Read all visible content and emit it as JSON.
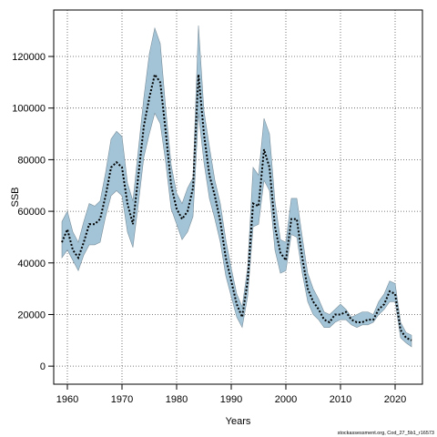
{
  "chart_data": {
    "type": "line",
    "title": "",
    "xlabel": "Years",
    "ylabel": "SSB",
    "xlim": [
      1957.5,
      2025.0
    ],
    "ylim": [
      -7000,
      138000
    ],
    "x_ticks": [
      1960,
      1970,
      1980,
      1990,
      2000,
      2010,
      2020
    ],
    "y_ticks": [
      0,
      20000,
      40000,
      60000,
      80000,
      100000,
      120000
    ],
    "grid": true,
    "legend": "none",
    "colors": {
      "band": "#a3c4d6",
      "band_stroke": "#7a8f9c",
      "line": "#000000",
      "grid": "#555555"
    },
    "credit": "stockassessment.org, Cod_27_5b1_r16573",
    "series": [
      {
        "style": "dotted",
        "x": [
          1959,
          1960,
          1961,
          1962,
          1963,
          1964,
          1965,
          1966,
          1967,
          1968,
          1969,
          1970,
          1971,
          1972,
          1973,
          1974,
          1975,
          1976,
          1977,
          1978,
          1979,
          1980,
          1981,
          1982,
          1983,
          1984,
          1985,
          1986,
          1987,
          1988,
          1989,
          1990,
          1991,
          1992,
          1993,
          1994,
          1995,
          1996,
          1997,
          1998,
          1999,
          2000,
          2001,
          2002,
          2003,
          2004,
          2005,
          2006,
          2007,
          2008,
          2009,
          2010,
          2011,
          2012,
          2013,
          2014,
          2015,
          2016,
          2017,
          2018,
          2019,
          2020,
          2021,
          2022,
          2023
        ],
        "values": [
          48000,
          53000,
          45000,
          42000,
          48000,
          55000,
          55000,
          57000,
          66000,
          77000,
          79000,
          77000,
          63000,
          55000,
          74000,
          93000,
          104000,
          113000,
          110000,
          91000,
          70000,
          61000,
          57000,
          60000,
          69000,
          113000,
          90000,
          74000,
          66000,
          56000,
          42000,
          33000,
          24000,
          19000,
          33000,
          63000,
          62000,
          84000,
          77000,
          54000,
          44000,
          41000,
          57000,
          57000,
          42000,
          30000,
          25000,
          22000,
          18000,
          17000,
          20000,
          20000,
          21000,
          18000,
          17000,
          17000,
          18000,
          18000,
          22000,
          24000,
          29000,
          28000,
          14000,
          11000,
          10000
        ]
      }
    ],
    "band": {
      "upper": [
        56000,
        60000,
        52000,
        48000,
        56000,
        63000,
        62000,
        64000,
        75000,
        88000,
        91000,
        89000,
        71000,
        64000,
        84000,
        104000,
        121000,
        131000,
        125000,
        100000,
        78000,
        67000,
        63000,
        69000,
        73000,
        132000,
        99000,
        85000,
        72000,
        63000,
        49000,
        38000,
        28000,
        23000,
        38000,
        77000,
        74000,
        96000,
        90000,
        64000,
        49000,
        48000,
        65000,
        65000,
        50000,
        36000,
        30000,
        26000,
        21000,
        20000,
        22000,
        24000,
        22000,
        19000,
        20000,
        21000,
        21000,
        20000,
        25000,
        28000,
        33000,
        32000,
        17000,
        13000,
        12000
      ],
      "lower": [
        42000,
        45000,
        41000,
        37000,
        43000,
        47000,
        47000,
        48000,
        58000,
        66000,
        68000,
        66000,
        52000,
        46000,
        63000,
        81000,
        90000,
        98000,
        94000,
        79000,
        61000,
        55000,
        49000,
        52000,
        58000,
        98000,
        79000,
        65000,
        57000,
        48000,
        35000,
        27000,
        19000,
        15000,
        27000,
        54000,
        55000,
        72000,
        68000,
        45000,
        36000,
        37000,
        51000,
        50000,
        36000,
        25000,
        20000,
        18000,
        15000,
        15000,
        17000,
        18000,
        18000,
        16000,
        15000,
        16000,
        16000,
        17000,
        20000,
        22000,
        25000,
        25000,
        11000,
        9000,
        7500
      ]
    }
  }
}
